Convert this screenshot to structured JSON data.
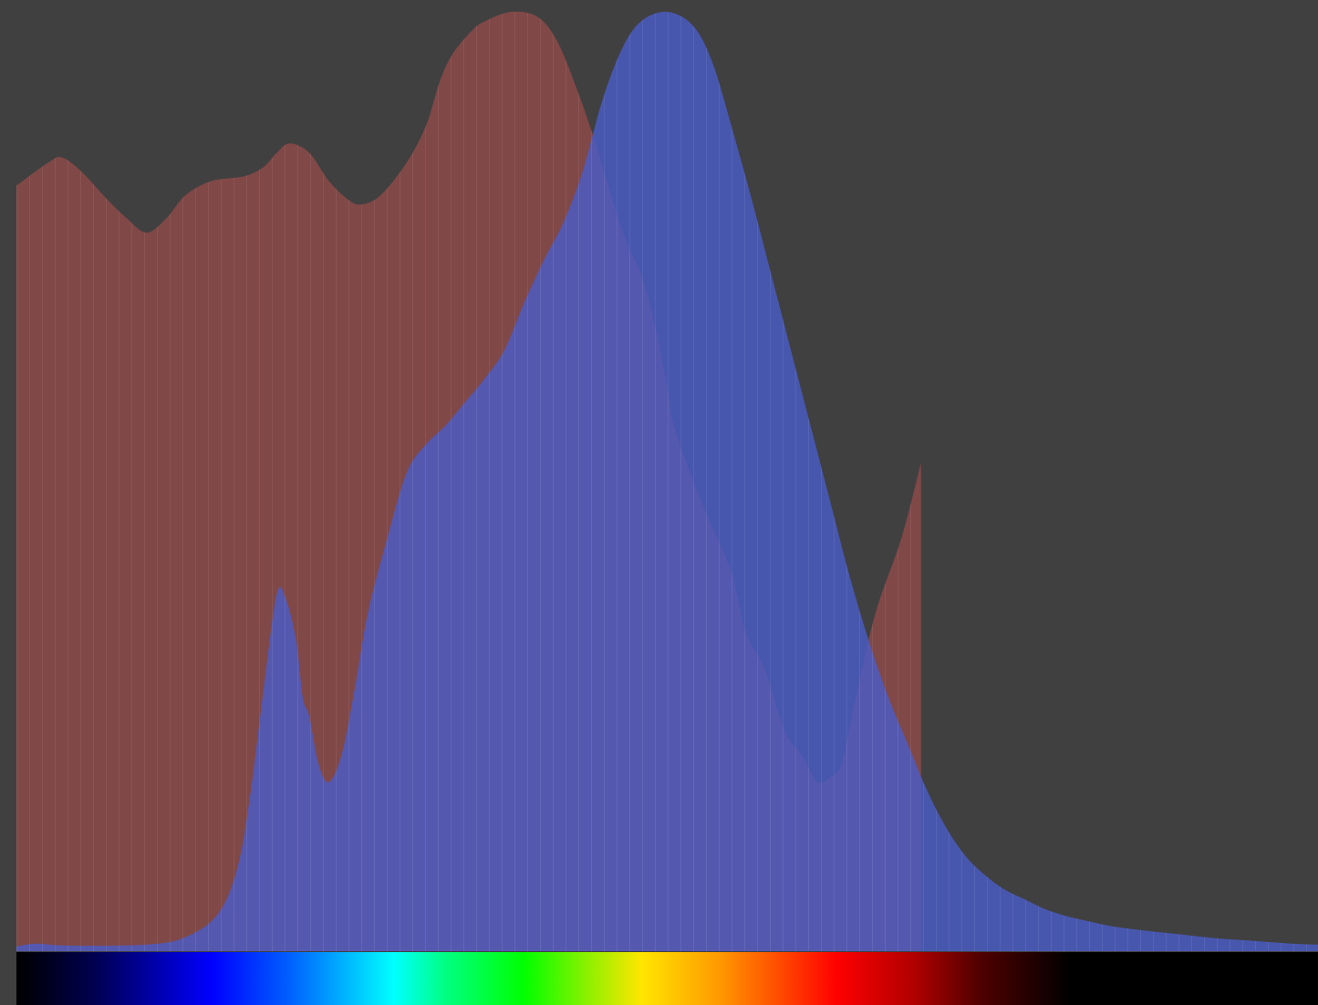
{
  "chart_data": {
    "type": "area",
    "title": "",
    "xlabel": "",
    "ylabel": "",
    "grid": false,
    "legend": "none",
    "xlim": [
      0,
      1
    ],
    "ylim": [
      0,
      1
    ],
    "series": [
      {
        "color": "#c0504d",
        "opacity": 0.5,
        "x": [
          0.0,
          0.025,
          0.035,
          0.05,
          0.07,
          0.085,
          0.1,
          0.115,
          0.13,
          0.15,
          0.175,
          0.19,
          0.2,
          0.21,
          0.225,
          0.24,
          0.255,
          0.265,
          0.28,
          0.3,
          0.315,
          0.325,
          0.335,
          0.35,
          0.36,
          0.38,
          0.4,
          0.415,
          0.43,
          0.445,
          0.46,
          0.47,
          0.48,
          0.49,
          0.5,
          0.505,
          0.52,
          0.535,
          0.55,
          0.56,
          0.575,
          0.59,
          0.605,
          0.615,
          0.625,
          0.634,
          0.645,
          0.66,
          0.68,
          0.695
        ],
        "y": [
          0.815,
          0.84,
          0.845,
          0.83,
          0.8,
          0.78,
          0.765,
          0.78,
          0.805,
          0.82,
          0.825,
          0.835,
          0.85,
          0.86,
          0.85,
          0.82,
          0.8,
          0.795,
          0.805,
          0.84,
          0.88,
          0.925,
          0.955,
          0.98,
          0.99,
          1.0,
          0.995,
          0.97,
          0.92,
          0.86,
          0.79,
          0.75,
          0.72,
          0.67,
          0.6,
          0.56,
          0.5,
          0.45,
          0.4,
          0.34,
          0.3,
          0.235,
          0.205,
          0.18,
          0.185,
          0.2,
          0.27,
          0.36,
          0.44,
          0.52
        ]
      },
      {
        "color": "#4a5dc9",
        "opacity": 0.8,
        "x": [
          0.0,
          0.015,
          0.04,
          0.1,
          0.13,
          0.155,
          0.17,
          0.18,
          0.19,
          0.2,
          0.207,
          0.215,
          0.22,
          0.225,
          0.232,
          0.24,
          0.25,
          0.26,
          0.27,
          0.285,
          0.3,
          0.315,
          0.33,
          0.345,
          0.36,
          0.375,
          0.39,
          0.405,
          0.42,
          0.435,
          0.45,
          0.465,
          0.48,
          0.5,
          0.52,
          0.535,
          0.55,
          0.565,
          0.58,
          0.595,
          0.61,
          0.625,
          0.64,
          0.655,
          0.67,
          0.685,
          0.7,
          0.715,
          0.73,
          0.745,
          0.76,
          0.775,
          0.79,
          0.805,
          0.82,
          0.84,
          0.86,
          0.88,
          0.9,
          0.92,
          0.94,
          0.96,
          0.98,
          1.0
        ],
        "y": [
          0.005,
          0.008,
          0.006,
          0.007,
          0.015,
          0.04,
          0.09,
          0.17,
          0.28,
          0.38,
          0.375,
          0.33,
          0.27,
          0.25,
          0.2,
          0.18,
          0.21,
          0.28,
          0.36,
          0.44,
          0.51,
          0.54,
          0.56,
          0.585,
          0.61,
          0.64,
          0.69,
          0.735,
          0.775,
          0.83,
          0.905,
          0.96,
          0.99,
          1.0,
          0.985,
          0.945,
          0.875,
          0.8,
          0.72,
          0.64,
          0.56,
          0.48,
          0.4,
          0.33,
          0.27,
          0.22,
          0.17,
          0.13,
          0.1,
          0.08,
          0.065,
          0.055,
          0.045,
          0.038,
          0.033,
          0.027,
          0.023,
          0.02,
          0.017,
          0.014,
          0.012,
          0.01,
          0.008,
          0.007
        ]
      }
    ],
    "spectrum_bar": {
      "stops": [
        {
          "pos": 0.0,
          "color": "#000000"
        },
        {
          "pos": 0.06,
          "color": "#000050"
        },
        {
          "pos": 0.15,
          "color": "#0000ff"
        },
        {
          "pos": 0.21,
          "color": "#0060ff"
        },
        {
          "pos": 0.29,
          "color": "#00ffff"
        },
        {
          "pos": 0.33,
          "color": "#00ff80"
        },
        {
          "pos": 0.39,
          "color": "#00ff00"
        },
        {
          "pos": 0.44,
          "color": "#90f000"
        },
        {
          "pos": 0.48,
          "color": "#ffe600"
        },
        {
          "pos": 0.54,
          "color": "#ff9900"
        },
        {
          "pos": 0.59,
          "color": "#ff4400"
        },
        {
          "pos": 0.63,
          "color": "#ff0000"
        },
        {
          "pos": 0.69,
          "color": "#b00000"
        },
        {
          "pos": 0.74,
          "color": "#500000"
        },
        {
          "pos": 0.81,
          "color": "#000000"
        },
        {
          "pos": 1.0,
          "color": "#000000"
        }
      ]
    },
    "colors": {
      "background": "#404040"
    }
  }
}
